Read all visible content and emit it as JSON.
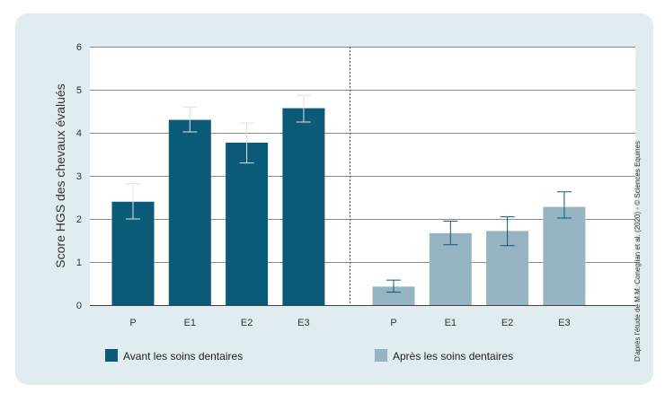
{
  "chart_data": {
    "type": "bar",
    "ylabel": "Score HGS des chevaux évalués",
    "ylim": [
      0,
      6
    ],
    "yticks": [
      0,
      1,
      2,
      3,
      4,
      5,
      6
    ],
    "grid": true,
    "categories": [
      "P",
      "E1",
      "E2",
      "E3"
    ],
    "series": [
      {
        "name": "Avant les soins dentaires",
        "color": "#0b5a78",
        "values": [
          2.4,
          4.3,
          3.77,
          4.57
        ],
        "error_low": [
          2.0,
          4.02,
          3.3,
          4.25
        ],
        "error_high": [
          2.82,
          4.6,
          4.23,
          4.87
        ]
      },
      {
        "name": "Après les soins dentaires",
        "color": "#96b4c2",
        "values": [
          0.43,
          1.67,
          1.72,
          2.28
        ],
        "error_low": [
          0.3,
          1.4,
          1.38,
          2.02
        ],
        "error_high": [
          0.58,
          1.95,
          2.05,
          2.63
        ]
      }
    ],
    "legend": "bottom",
    "source_note": "D'après l'étude de M.M. Coneglian et al. (2020) - © Sciences Equines"
  }
}
